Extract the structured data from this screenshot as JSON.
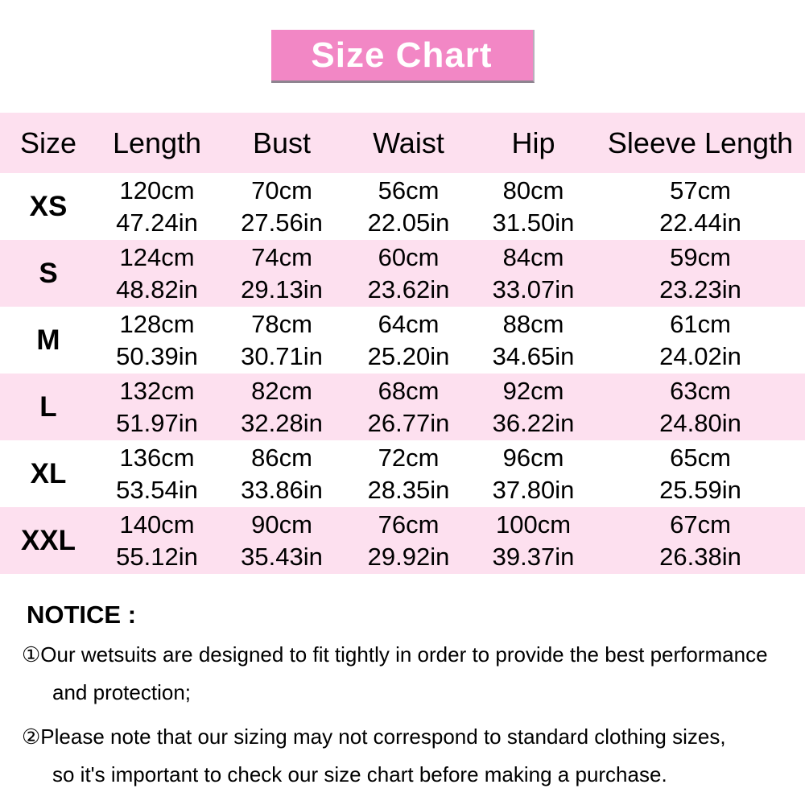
{
  "title_banner": {
    "text": "Size Chart"
  },
  "table": {
    "headers": [
      "Size",
      "Length",
      "Bust",
      "Waist",
      "Hip",
      "Sleeve Length"
    ],
    "rows": [
      {
        "size": "XS",
        "length": {
          "cm": "120cm",
          "in": "47.24in"
        },
        "bust": {
          "cm": "70cm",
          "in": "27.56in"
        },
        "waist": {
          "cm": "56cm",
          "in": "22.05in"
        },
        "hip": {
          "cm": "80cm",
          "in": "31.50in"
        },
        "sleeve": {
          "cm": "57cm",
          "in": "22.44in"
        }
      },
      {
        "size": "S",
        "length": {
          "cm": "124cm",
          "in": "48.82in"
        },
        "bust": {
          "cm": "74cm",
          "in": "29.13in"
        },
        "waist": {
          "cm": "60cm",
          "in": "23.62in"
        },
        "hip": {
          "cm": "84cm",
          "in": "33.07in"
        },
        "sleeve": {
          "cm": "59cm",
          "in": "23.23in"
        }
      },
      {
        "size": "M",
        "length": {
          "cm": "128cm",
          "in": "50.39in"
        },
        "bust": {
          "cm": "78cm",
          "in": "30.71in"
        },
        "waist": {
          "cm": "64cm",
          "in": "25.20in"
        },
        "hip": {
          "cm": "88cm",
          "in": "34.65in"
        },
        "sleeve": {
          "cm": "61cm",
          "in": "24.02in"
        }
      },
      {
        "size": "L",
        "length": {
          "cm": "132cm",
          "in": "51.97in"
        },
        "bust": {
          "cm": "82cm",
          "in": "32.28in"
        },
        "waist": {
          "cm": "68cm",
          "in": "26.77in"
        },
        "hip": {
          "cm": "92cm",
          "in": "36.22in"
        },
        "sleeve": {
          "cm": "63cm",
          "in": "24.80in"
        }
      },
      {
        "size": "XL",
        "length": {
          "cm": "136cm",
          "in": "53.54in"
        },
        "bust": {
          "cm": "86cm",
          "in": "33.86in"
        },
        "waist": {
          "cm": "72cm",
          "in": "28.35in"
        },
        "hip": {
          "cm": "96cm",
          "in": "37.80in"
        },
        "sleeve": {
          "cm": "65cm",
          "in": "25.59in"
        }
      },
      {
        "size": "XXL",
        "length": {
          "cm": "140cm",
          "in": "55.12in"
        },
        "bust": {
          "cm": "90cm",
          "in": "35.43in"
        },
        "waist": {
          "cm": "76cm",
          "in": "29.92in"
        },
        "hip": {
          "cm": "100cm",
          "in": "39.37in"
        },
        "sleeve": {
          "cm": "67cm",
          "in": "26.38in"
        }
      }
    ]
  },
  "notice": {
    "heading": "NOTICE :",
    "items": [
      {
        "line1": "①Our wetsuits are designed to fit tightly in order to provide the best performance",
        "line2": "and protection;"
      },
      {
        "line1": "②Please note that our sizing may not correspond to standard clothing sizes,",
        "line2": "so it's important to check our size chart before making a purchase."
      }
    ]
  },
  "colors": {
    "banner_pink": "#f287c5",
    "row_pink": "#fde0ef",
    "row_white": "#ffffff",
    "text": "#000000",
    "banner_text": "#ffffff"
  }
}
